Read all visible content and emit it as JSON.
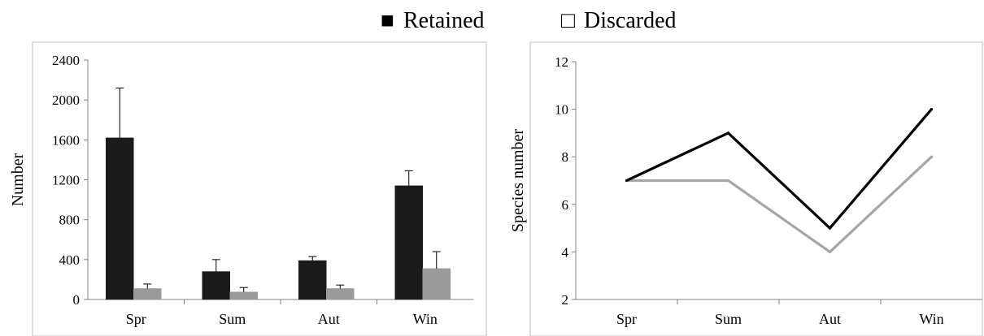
{
  "legend": {
    "items": [
      {
        "label": "Retained",
        "symbol": "■",
        "color": "#1a1a1a"
      },
      {
        "label": "Discarded",
        "symbol": "□",
        "color": "#9a9a9a"
      }
    ],
    "placement": "top-center"
  },
  "chart_data": [
    {
      "type": "bar",
      "categories": [
        "Spr",
        "Sum",
        "Aut",
        "Win"
      ],
      "series": [
        {
          "name": "Retained",
          "values": [
            1620,
            280,
            390,
            1140
          ],
          "errors": [
            500,
            120,
            40,
            150
          ],
          "color": "#1a1a1a"
        },
        {
          "name": "Discarded",
          "values": [
            110,
            75,
            110,
            310
          ],
          "errors": [
            45,
            45,
            35,
            170
          ],
          "color": "#9a9a9a"
        }
      ],
      "ylabel": "Number",
      "ylim": [
        0,
        2400
      ],
      "yticks": [
        0,
        400,
        800,
        1200,
        1600,
        2000,
        2400
      ],
      "grid": false
    },
    {
      "type": "line",
      "categories": [
        "Spr",
        "Sum",
        "Aut",
        "Win"
      ],
      "series": [
        {
          "name": "Retained",
          "values": [
            7,
            9,
            5,
            10
          ],
          "color": "#000000"
        },
        {
          "name": "Discarded",
          "values": [
            7,
            7,
            4,
            8
          ],
          "color": "#a6a6a6"
        }
      ],
      "ylabel": "Species number",
      "ylim": [
        2,
        12
      ],
      "yticks": [
        2,
        4,
        6,
        8,
        10,
        12
      ],
      "grid": false
    }
  ]
}
